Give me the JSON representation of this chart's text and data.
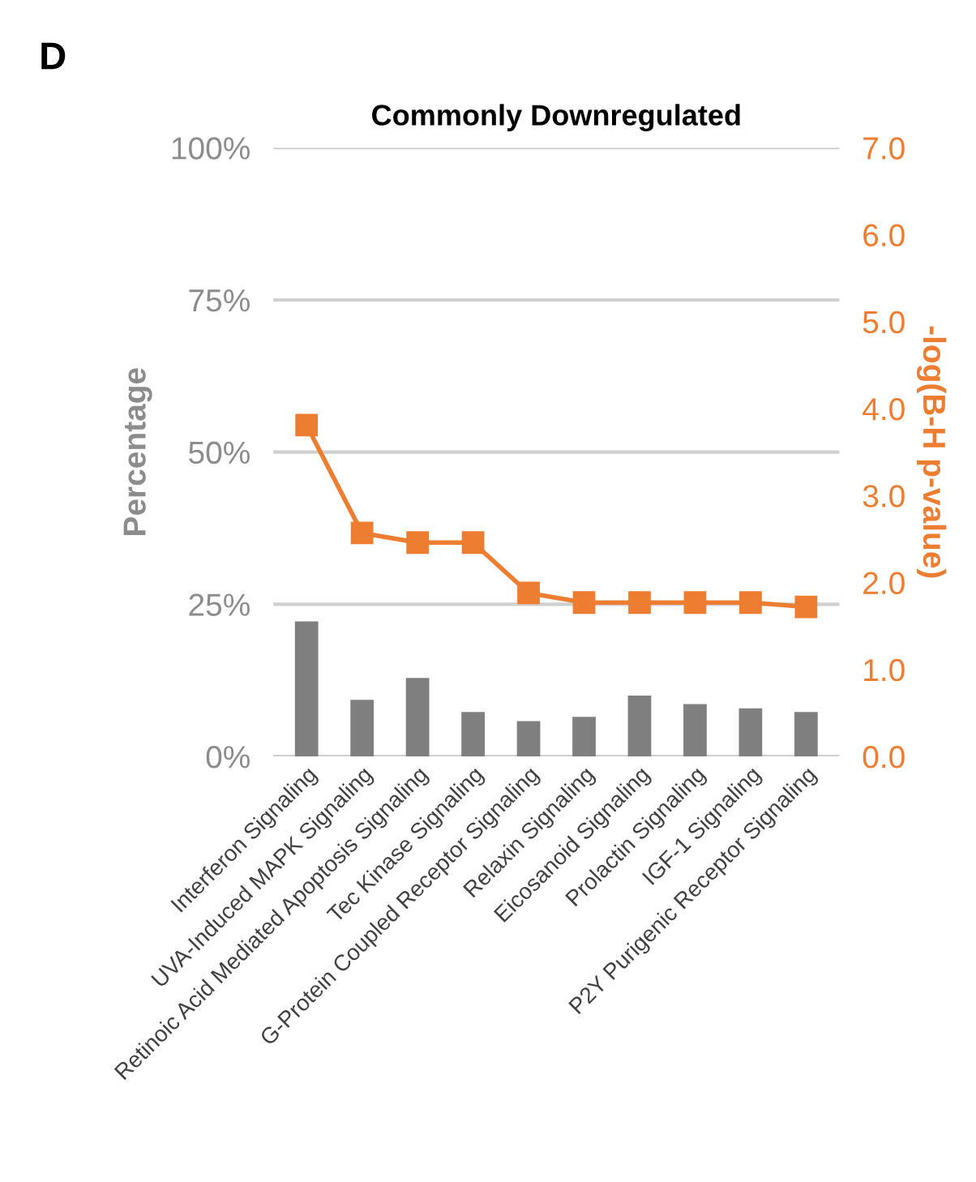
{
  "chart_data": {
    "type": "bar",
    "title": "Commonly Downregulated",
    "ylabel": "Percentage",
    "y2label": "-log(B-H p-value)",
    "annotations": [
      "D"
    ],
    "categories": [
      "Interferon Signaling",
      "UVA-Induced MAPK Signaling",
      "Retinoic Acid Mediated Apoptosis Signaling",
      "Tec Kinase Signaling",
      "G-Protein Coupled Receptor Signaling",
      "Relaxin Signaling",
      "Eicosanoid Signaling",
      "Prolactin Signaling",
      "IGF-1 Signaling",
      "P2Y Purigenic Receptor Signaling"
    ],
    "series": [
      {
        "color": "#7f7f7f",
        "values": [
          22.2,
          9.3,
          12.9,
          7.3,
          5.8,
          6.5,
          10.0,
          8.6,
          7.9,
          7.3
        ]
      },
      {
        "type": "line",
        "axis": "y2",
        "color": "#ed7d31",
        "marker": "square",
        "values": [
          3.81,
          2.57,
          2.46,
          2.46,
          1.88,
          1.77,
          1.77,
          1.77,
          1.77,
          1.72
        ]
      }
    ],
    "ylim": [
      0,
      100
    ],
    "yticks": [
      {
        "value": 0,
        "label": "0%"
      },
      {
        "value": 25,
        "label": "25%"
      },
      {
        "value": 50,
        "label": "50%"
      },
      {
        "value": 75,
        "label": "75%"
      },
      {
        "value": 100,
        "label": "100%"
      }
    ],
    "y2lim": [
      0,
      7
    ],
    "y2ticks": [
      {
        "value": 0,
        "label": "0.0"
      },
      {
        "value": 1,
        "label": "1.0"
      },
      {
        "value": 2,
        "label": "2.0"
      },
      {
        "value": 3,
        "label": "3.0"
      },
      {
        "value": 4,
        "label": "4.0"
      },
      {
        "value": 5,
        "label": "5.0"
      },
      {
        "value": 6,
        "label": "6.0"
      },
      {
        "value": 7,
        "label": "7.0"
      }
    ],
    "grid": "y"
  }
}
